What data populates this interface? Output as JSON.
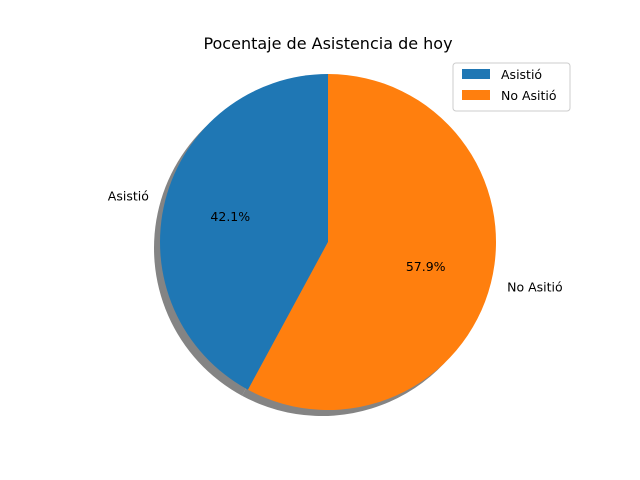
{
  "chart_data": {
    "type": "pie",
    "title": "Pocentaje de Asistencia de hoy",
    "slices": [
      {
        "label": "Asistió",
        "value": 42.1,
        "pct_label": "42.1%",
        "color": "#1f77b4"
      },
      {
        "label": "No Asitió",
        "value": 57.9,
        "pct_label": "57.9%",
        "color": "#ff7f0e"
      }
    ],
    "start_angle_deg": 90,
    "direction": "counterclockwise",
    "shadow": true,
    "legend": {
      "placement": "top-right",
      "entries": [
        "Asistió",
        "No Asitió"
      ]
    }
  }
}
